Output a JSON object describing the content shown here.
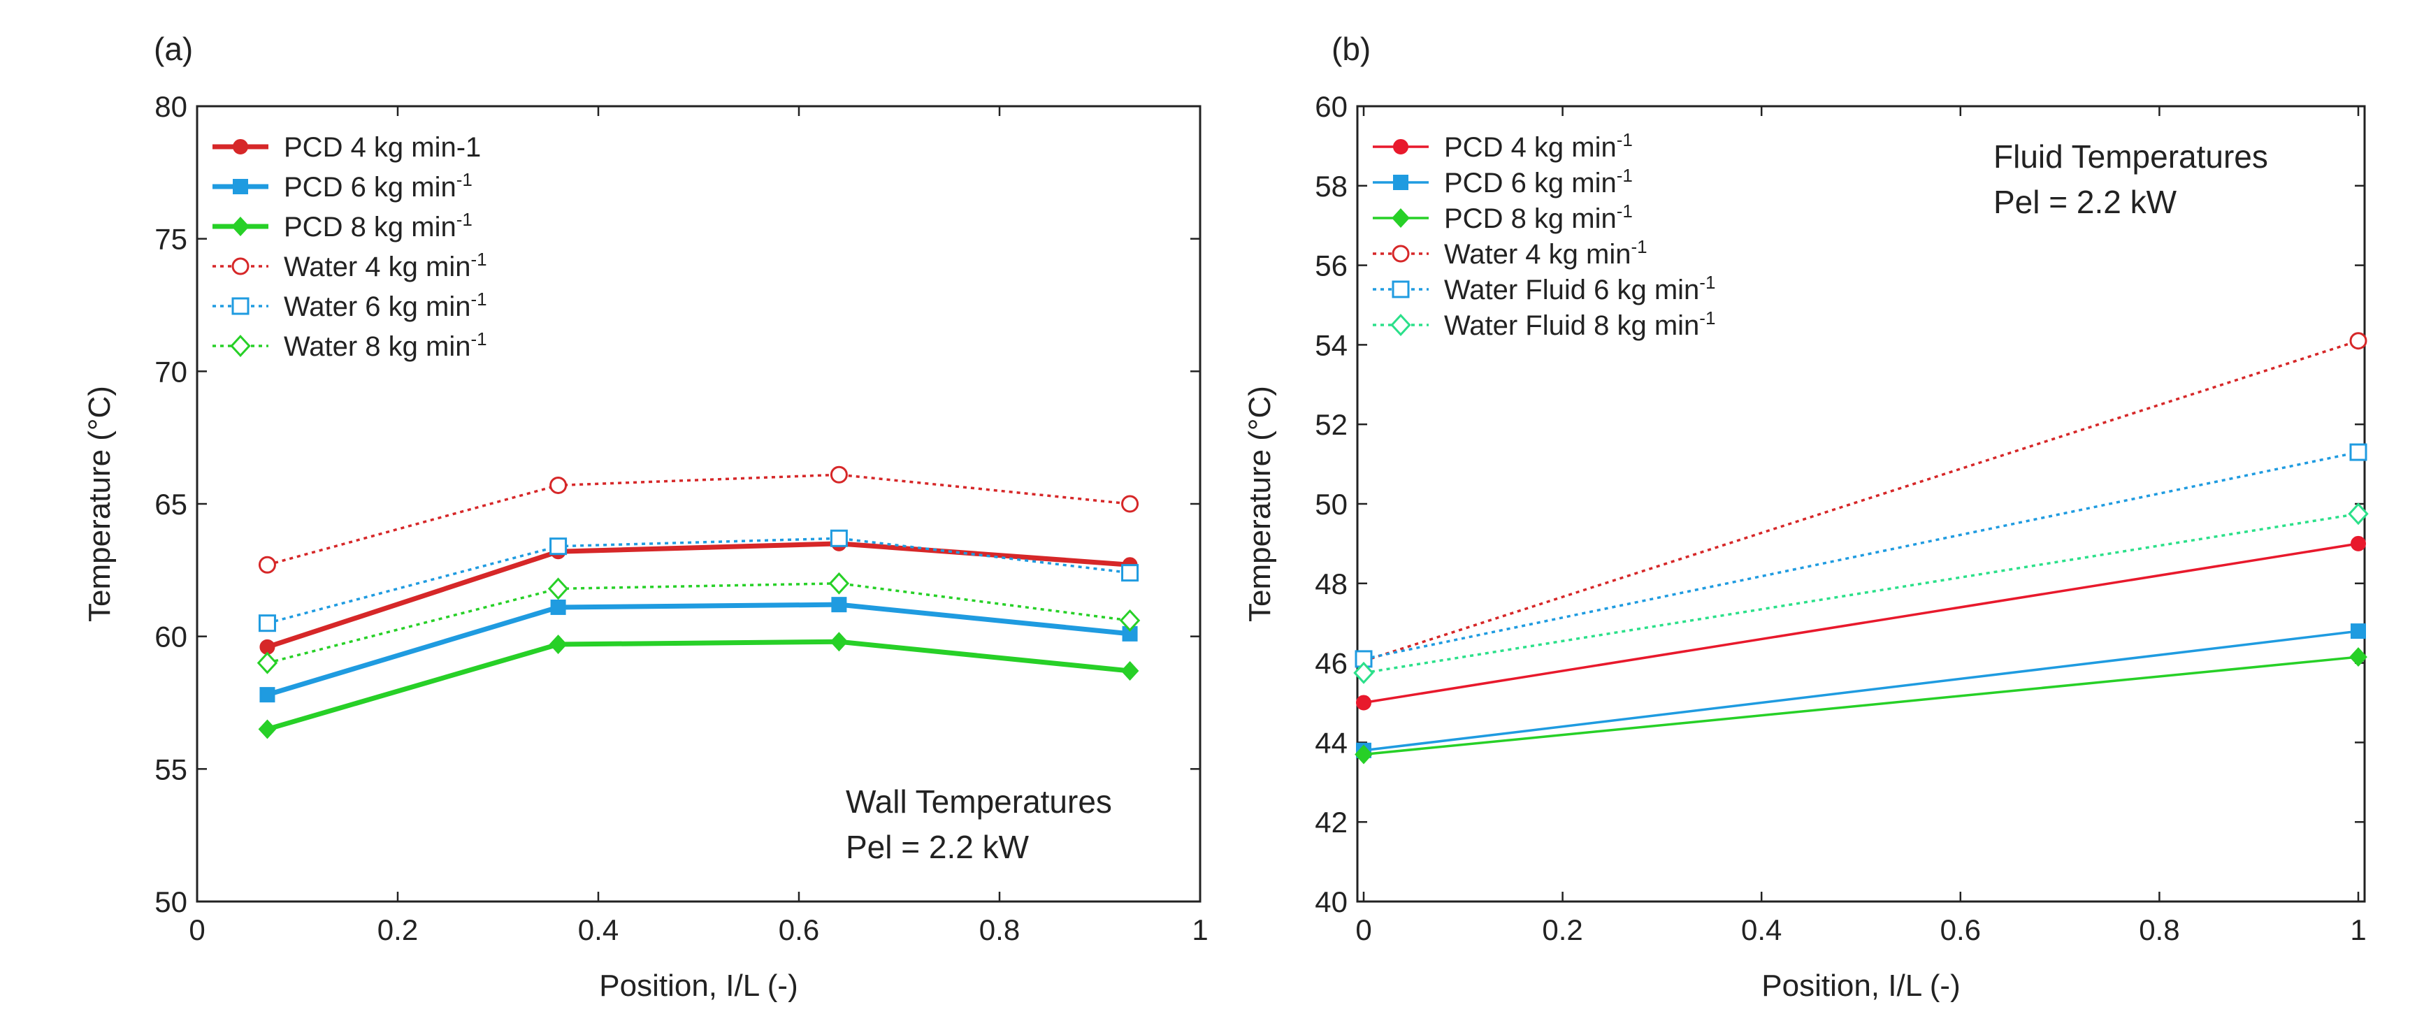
{
  "chart_data": [
    {
      "type": "line",
      "panel_label": "(a)",
      "annotation": [
        "Wall Temperatures",
        "Pel = 2.2 kW"
      ],
      "xlabel": "Position, I/L (-)",
      "ylabel": "Temperature (°C)",
      "xlim": [
        0,
        1
      ],
      "ylim": [
        50,
        80
      ],
      "xticks": [
        0,
        0.2,
        0.4,
        0.6,
        0.8,
        1
      ],
      "xtick_labels": [
        "0",
        "0.2",
        "0.4",
        "0.6",
        "0.8",
        "1"
      ],
      "yticks": [
        50,
        55,
        60,
        65,
        70,
        75,
        80
      ],
      "ytick_labels": [
        "50",
        "55",
        "60",
        "65",
        "70",
        "75",
        "80"
      ],
      "legend_position": "top-left",
      "series": [
        {
          "name": "PCD 4 kg min-1",
          "sup": "",
          "color": "#d62728",
          "marker": "circle",
          "filled": true,
          "dashed": false,
          "bold": true,
          "x": [
            0.07,
            0.36,
            0.64,
            0.93
          ],
          "y": [
            59.6,
            63.2,
            63.5,
            62.7
          ]
        },
        {
          "name": "PCD 6 kg min",
          "sup": "-1",
          "color": "#1f9be0",
          "marker": "square",
          "filled": true,
          "dashed": false,
          "bold": true,
          "x": [
            0.07,
            0.36,
            0.64,
            0.93
          ],
          "y": [
            57.8,
            61.1,
            61.2,
            60.1
          ]
        },
        {
          "name": "PCD 8 kg min",
          "sup": "-1",
          "color": "#27d027",
          "marker": "diamond",
          "filled": true,
          "dashed": false,
          "bold": true,
          "x": [
            0.07,
            0.36,
            0.64,
            0.93
          ],
          "y": [
            56.5,
            59.7,
            59.8,
            58.7
          ]
        },
        {
          "name": "Water 4 kg min",
          "sup": "-1",
          "color": "#d62728",
          "marker": "circle",
          "filled": false,
          "dashed": true,
          "bold": false,
          "x": [
            0.07,
            0.36,
            0.64,
            0.93
          ],
          "y": [
            62.7,
            65.7,
            66.1,
            65.0
          ]
        },
        {
          "name": "Water 6 kg min",
          "sup": "-1",
          "color": "#1f9be0",
          "marker": "square",
          "filled": false,
          "dashed": true,
          "bold": false,
          "x": [
            0.07,
            0.36,
            0.64,
            0.93
          ],
          "y": [
            60.5,
            63.4,
            63.7,
            62.4
          ]
        },
        {
          "name": "Water 8 kg min",
          "sup": "-1",
          "color": "#27d027",
          "marker": "diamond",
          "filled": false,
          "dashed": true,
          "bold": false,
          "x": [
            0.07,
            0.36,
            0.64,
            0.93
          ],
          "y": [
            59.0,
            61.8,
            62.0,
            60.6
          ]
        }
      ]
    },
    {
      "type": "line",
      "panel_label": "(b)",
      "annotation": [
        "Fluid Temperatures",
        "Pel = 2.2 kW"
      ],
      "xlabel": "Position, I/L (-)",
      "ylabel": "Temperature (°C)",
      "xlim": [
        0,
        1
      ],
      "ylim": [
        40,
        60
      ],
      "xticks": [
        0,
        0.2,
        0.4,
        0.6,
        0.8,
        1
      ],
      "xtick_labels": [
        "0",
        "0.2",
        "0.4",
        "0.6",
        "0.8",
        "1"
      ],
      "yticks": [
        40,
        42,
        44,
        46,
        48,
        50,
        52,
        54,
        56,
        58,
        60
      ],
      "ytick_labels": [
        "40",
        "42",
        "44",
        "46",
        "48",
        "50",
        "52",
        "54",
        "56",
        "58",
        "60"
      ],
      "legend_position": "top-left",
      "series": [
        {
          "name": "PCD 4 kg min",
          "sup": "-1",
          "color": "#e8192c",
          "marker": "circle",
          "filled": true,
          "dashed": false,
          "bold": false,
          "x": [
            0,
            1
          ],
          "y": [
            45.0,
            49.0
          ]
        },
        {
          "name": "PCD 6 kg min",
          "sup": "-1",
          "color": "#1f9be0",
          "marker": "square",
          "filled": true,
          "dashed": false,
          "bold": false,
          "x": [
            0,
            1
          ],
          "y": [
            43.8,
            46.8
          ]
        },
        {
          "name": "PCD 8 kg min",
          "sup": "-1",
          "color": "#27d027",
          "marker": "diamond",
          "filled": true,
          "dashed": false,
          "bold": false,
          "x": [
            0,
            1
          ],
          "y": [
            43.7,
            46.15
          ]
        },
        {
          "name": "Water 4 kg min",
          "sup": "-1",
          "color": "#d62728",
          "marker": "circle",
          "filled": false,
          "dashed": true,
          "bold": false,
          "x": [
            0,
            1
          ],
          "y": [
            46.05,
            54.1
          ]
        },
        {
          "name": "Water Fluid 6 kg min",
          "sup": "-1",
          "color": "#1f9be0",
          "marker": "square",
          "filled": false,
          "dashed": true,
          "bold": false,
          "x": [
            0,
            1
          ],
          "y": [
            46.1,
            51.3
          ]
        },
        {
          "name": "Water Fluid 8 kg min",
          "sup": "-1",
          "color": "#2be08a",
          "marker": "diamond",
          "filled": false,
          "dashed": true,
          "bold": false,
          "x": [
            0,
            1
          ],
          "y": [
            45.75,
            49.75
          ]
        }
      ]
    }
  ]
}
